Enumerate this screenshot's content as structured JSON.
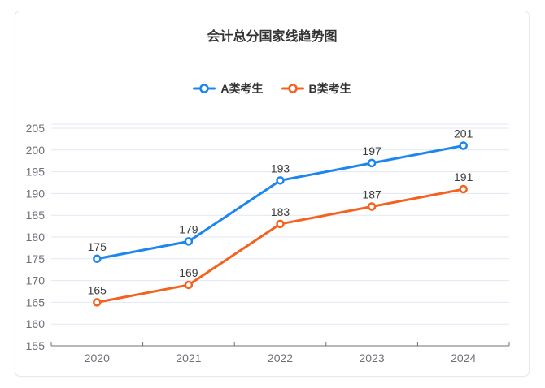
{
  "card": {
    "title": "会计总分国家线趋势图"
  },
  "legend": [
    {
      "label": "A类考生",
      "color": "#1c86ee"
    },
    {
      "label": "B类考生",
      "color": "#f5621d"
    }
  ],
  "chart_data": {
    "type": "line",
    "title": "会计总分国家线趋势图",
    "categories": [
      "2020",
      "2021",
      "2022",
      "2023",
      "2024"
    ],
    "series": [
      {
        "name": "A类考生",
        "color": "#1c86ee",
        "values": [
          175,
          179,
          193,
          197,
          201
        ]
      },
      {
        "name": "B类考生",
        "color": "#f5621d",
        "values": [
          165,
          169,
          183,
          187,
          191
        ]
      }
    ],
    "xlabel": "",
    "ylabel": "",
    "ylim": [
      155,
      205
    ],
    "ystep": 5,
    "grid": true,
    "legend_position": "top",
    "colors": {
      "grid_line": "#e2e7f2",
      "axis_line": "#6e7079",
      "axis_label": "#6e7079",
      "data_label": "#3d3d3d",
      "marker_fill": "#ffffff"
    }
  }
}
